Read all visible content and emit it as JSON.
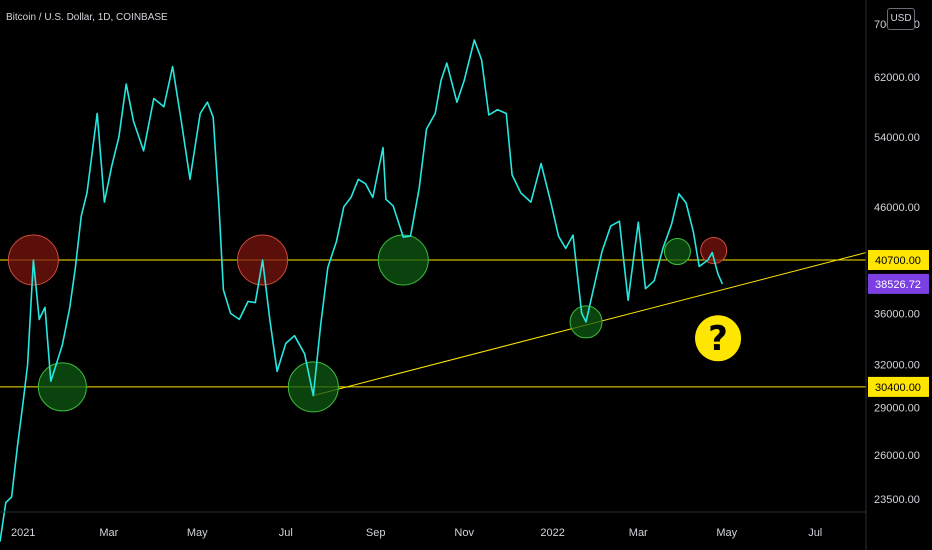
{
  "header": {
    "title": "Bitcoin / U.S. Dollar, 1D, COINBASE",
    "currency": "USD"
  },
  "chart_data": {
    "type": "line",
    "title": "Bitcoin / U.S. Dollar, 1D, COINBASE",
    "xlabel": "",
    "ylabel": "",
    "xlim": [
      "2020-12-16",
      "2022-08-05"
    ],
    "ylim": [
      22800,
      74000
    ],
    "y_scale": "log",
    "grid": false,
    "line_color": "#26e8e0",
    "x_ticks": [
      {
        "label": "2021",
        "date": "2021-01-01"
      },
      {
        "label": "Mar",
        "date": "2021-03-01"
      },
      {
        "label": "May",
        "date": "2021-05-01"
      },
      {
        "label": "Jul",
        "date": "2021-07-01"
      },
      {
        "label": "Sep",
        "date": "2021-09-01"
      },
      {
        "label": "Nov",
        "date": "2021-11-01"
      },
      {
        "label": "2022",
        "date": "2022-01-01"
      },
      {
        "label": "Mar",
        "date": "2022-03-01"
      },
      {
        "label": "May",
        "date": "2022-05-01"
      },
      {
        "label": "Jul",
        "date": "2022-07-01"
      }
    ],
    "y_ticks": [
      {
        "label": "23500.00",
        "value": 23500
      },
      {
        "label": "26000.00",
        "value": 26000
      },
      {
        "label": "29000.00",
        "value": 29000
      },
      {
        "label": "32000.00",
        "value": 32000
      },
      {
        "label": "36000.00",
        "value": 36000
      },
      {
        "label": "46000.00",
        "value": 46000
      },
      {
        "label": "54000.00",
        "value": 54000
      },
      {
        "label": "62000.00",
        "value": 62000
      },
      {
        "label": "70000.00",
        "value": 70000
      }
    ],
    "price_tags": [
      {
        "label": "40700.00",
        "value": 40700,
        "color": "#ffe600",
        "text_color": "#000000"
      },
      {
        "label": "38526.72",
        "value": 38526.72,
        "color": "#7b3fe4",
        "text_color": "#ffffff"
      },
      {
        "label": "30400.00",
        "value": 30400,
        "color": "#ffe600",
        "text_color": "#000000"
      }
    ],
    "horizontal_lines": [
      {
        "value": 40700,
        "color": "#ffe600"
      },
      {
        "value": 30400,
        "color": "#ffe600"
      }
    ],
    "trendlines": [
      {
        "from": {
          "date": "2021-07-20",
          "value": 29800
        },
        "to": {
          "date": "2022-08-05",
          "value": 41400
        },
        "color": "#ffe600"
      }
    ],
    "circles": [
      {
        "date": "2021-01-08",
        "value": 40700,
        "color": "red"
      },
      {
        "date": "2021-01-28",
        "value": 30400,
        "color": "green"
      },
      {
        "date": "2021-06-15",
        "value": 40700,
        "color": "red"
      },
      {
        "date": "2021-07-20",
        "value": 30400,
        "color": "green"
      },
      {
        "date": "2021-09-20",
        "value": 40700,
        "color": "green"
      },
      {
        "date": "2022-01-24",
        "value": 35300,
        "color": "green"
      },
      {
        "date": "2022-03-28",
        "value": 41500,
        "color": "green"
      },
      {
        "date": "2022-04-22",
        "value": 41600,
        "color": "red"
      }
    ],
    "annotations": [
      {
        "text": "?",
        "date": "2022-04-25",
        "value": 34000
      }
    ],
    "series": [
      {
        "x": [
          "2020-12-16",
          "2020-12-20",
          "2020-12-24",
          "2020-12-28",
          "2021-01-01",
          "2021-01-04",
          "2021-01-08",
          "2021-01-12",
          "2021-01-16",
          "2021-01-20",
          "2021-01-24",
          "2021-01-28",
          "2021-02-02",
          "2021-02-06",
          "2021-02-10",
          "2021-02-14",
          "2021-02-21",
          "2021-02-26",
          "2021-03-03",
          "2021-03-08",
          "2021-03-13",
          "2021-03-18",
          "2021-03-25",
          "2021-04-01",
          "2021-04-08",
          "2021-04-14",
          "2021-04-20",
          "2021-04-26",
          "2021-05-03",
          "2021-05-08",
          "2021-05-12",
          "2021-05-16",
          "2021-05-19",
          "2021-05-24",
          "2021-05-30",
          "2021-06-05",
          "2021-06-10",
          "2021-06-15",
          "2021-06-20",
          "2021-06-25",
          "2021-07-01",
          "2021-07-07",
          "2021-07-14",
          "2021-07-20",
          "2021-07-25",
          "2021-07-30",
          "2021-08-05",
          "2021-08-10",
          "2021-08-15",
          "2021-08-20",
          "2021-08-25",
          "2021-08-30",
          "2021-09-06",
          "2021-09-08",
          "2021-09-13",
          "2021-09-20",
          "2021-09-25",
          "2021-10-01",
          "2021-10-06",
          "2021-10-12",
          "2021-10-16",
          "2021-10-20",
          "2021-10-27",
          "2021-11-01",
          "2021-11-08",
          "2021-11-13",
          "2021-11-18",
          "2021-11-24",
          "2021-11-30",
          "2021-12-04",
          "2021-12-10",
          "2021-12-17",
          "2021-12-24",
          "2021-12-31",
          "2022-01-05",
          "2022-01-10",
          "2022-01-15",
          "2022-01-21",
          "2022-01-24",
          "2022-01-29",
          "2022-02-04",
          "2022-02-10",
          "2022-02-16",
          "2022-02-22",
          "2022-03-01",
          "2022-03-06",
          "2022-03-12",
          "2022-03-18",
          "2022-03-24",
          "2022-03-29",
          "2022-04-03",
          "2022-04-08",
          "2022-04-12",
          "2022-04-18",
          "2022-04-21",
          "2022-04-25",
          "2022-04-28"
        ],
        "values": [
          21300,
          23300,
          23600,
          26500,
          29400,
          32000,
          40700,
          35500,
          36500,
          30800,
          32100,
          33500,
          36400,
          40000,
          45000,
          47500,
          57000,
          46500,
          50500,
          54000,
          61000,
          56000,
          52300,
          59000,
          57900,
          63500,
          56000,
          49000,
          57000,
          58500,
          56500,
          46000,
          38000,
          36000,
          35500,
          37000,
          36900,
          40700,
          35500,
          31500,
          33600,
          34200,
          32800,
          29800,
          35000,
          40000,
          42500,
          46000,
          47000,
          49000,
          48500,
          47000,
          52700,
          46800,
          46100,
          42900,
          43000,
          48000,
          55000,
          57000,
          61500,
          64000,
          58500,
          61500,
          67500,
          64500,
          56800,
          57500,
          57000,
          49500,
          47500,
          46500,
          50800,
          46300,
          43000,
          41800,
          43100,
          36000,
          35300,
          38000,
          41500,
          44000,
          44500,
          37100,
          44400,
          38100,
          38800,
          41800,
          44200,
          47400,
          46400,
          43400,
          40100,
          40700,
          41400,
          39400,
          38526.72
        ]
      }
    ]
  }
}
